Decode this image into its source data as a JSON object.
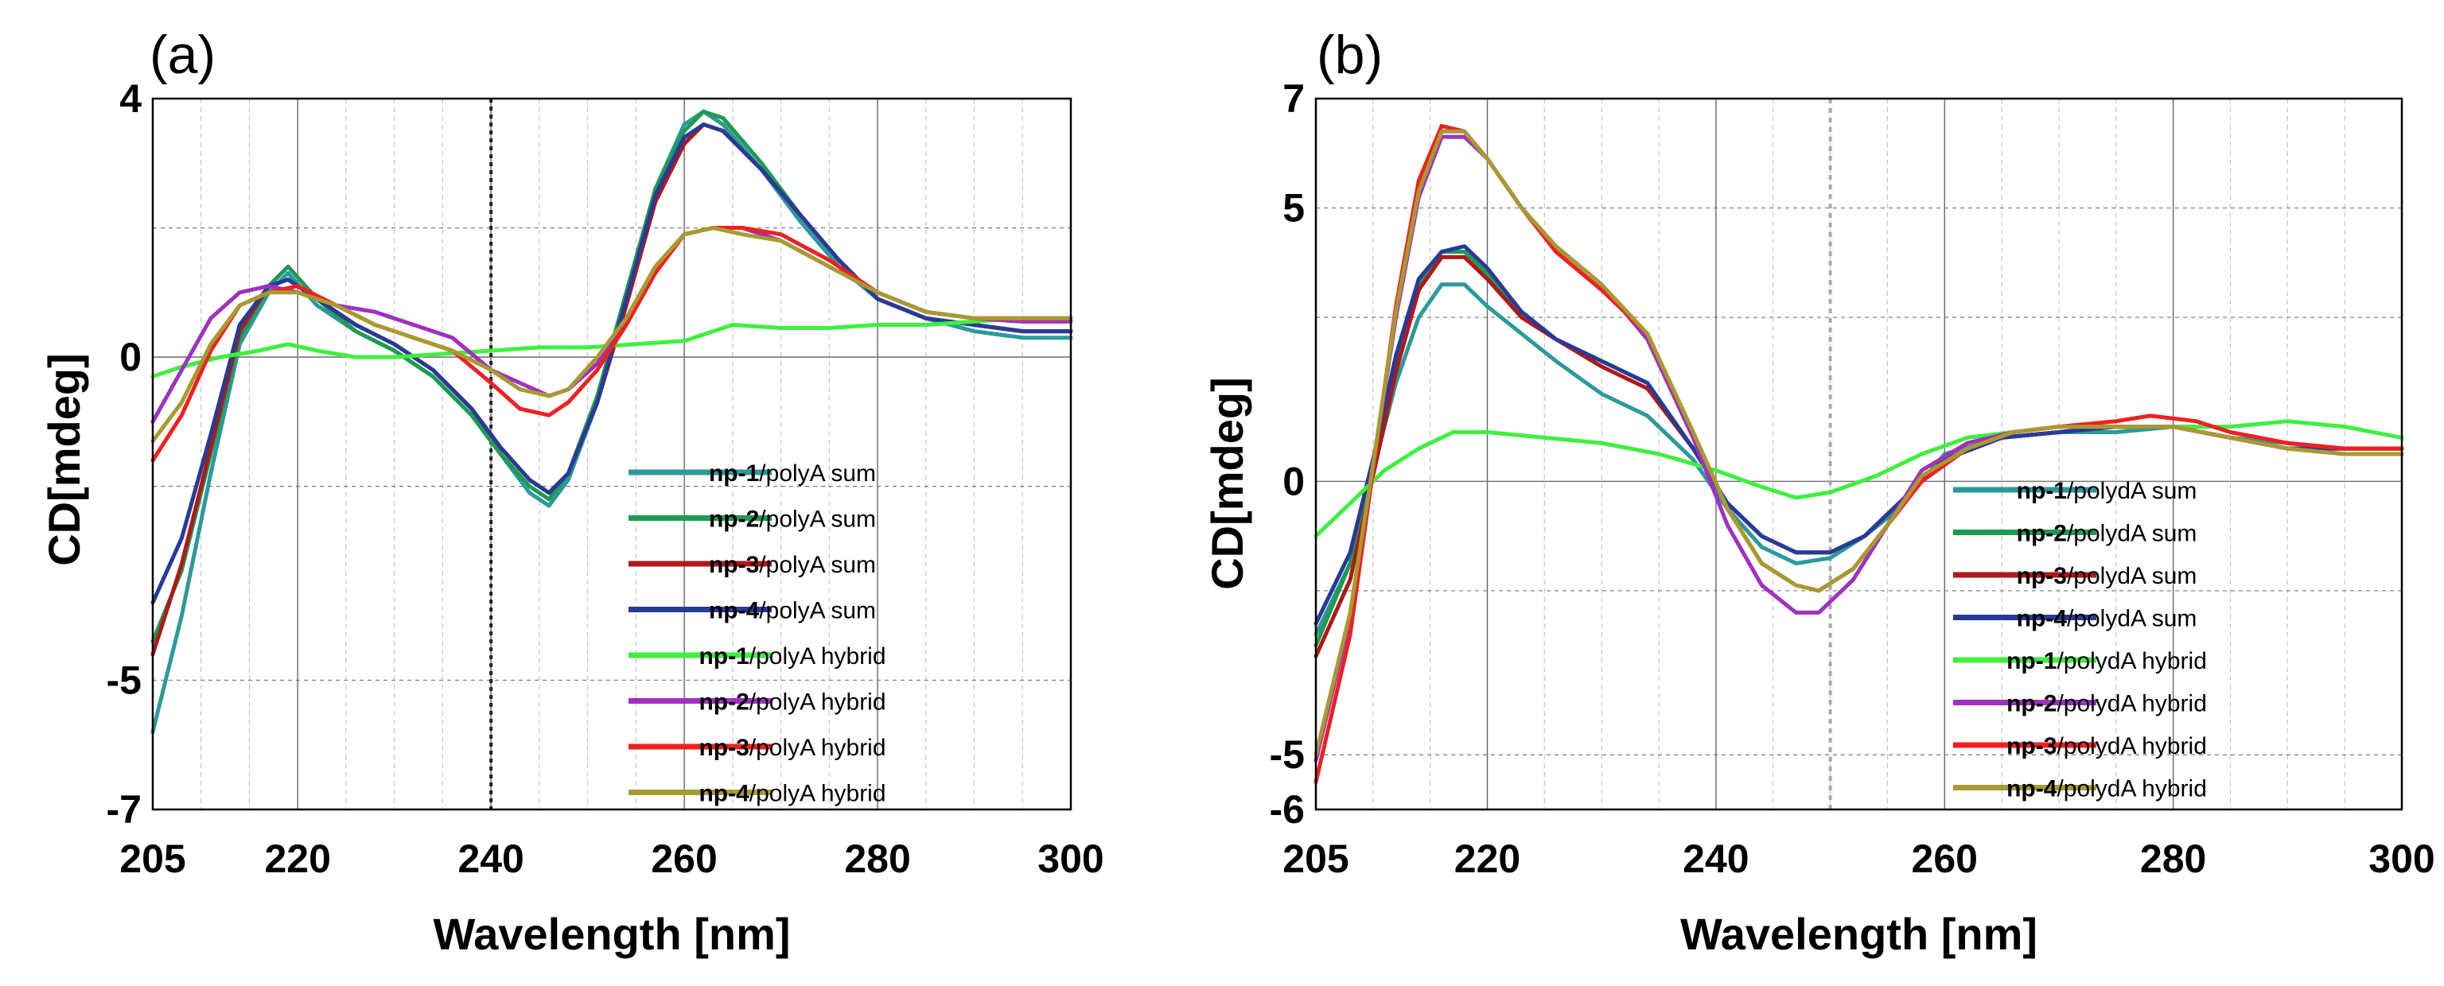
{
  "chart_data": [
    {
      "type": "line",
      "panel_label": "(a)",
      "xlabel": "Wavelength [nm]",
      "ylabel": "CD[mdeg]",
      "xlim": [
        205,
        300
      ],
      "ylim": [
        -7,
        4
      ],
      "x_ticks": [
        205,
        220,
        240,
        260,
        280,
        300
      ],
      "y_tick_labels": [
        4,
        0,
        -5,
        -7
      ],
      "y_grid": [
        2,
        -2,
        -5
      ],
      "marker_x": 240,
      "legend_position": "bottom-right",
      "series": [
        {
          "name": "np-1/polyA sum",
          "prefix": "np-1",
          "suffix": "/polyA sum",
          "color": "#2a9a9a",
          "x": [
            205,
            208,
            211,
            214,
            217,
            219,
            222,
            226,
            230,
            234,
            238,
            241,
            244,
            246,
            248,
            251,
            254,
            257,
            260,
            262,
            264,
            268,
            272,
            276,
            280,
            285,
            290,
            295,
            300
          ],
          "y": [
            -5.8,
            -4.0,
            -1.8,
            0.2,
            1.0,
            1.3,
            0.8,
            0.4,
            0.1,
            -0.3,
            -0.9,
            -1.5,
            -2.1,
            -2.3,
            -1.9,
            -0.7,
            0.9,
            2.6,
            3.6,
            3.8,
            3.6,
            2.9,
            2.1,
            1.4,
            0.9,
            0.6,
            0.4,
            0.3,
            0.3
          ]
        },
        {
          "name": "np-2/polyA sum",
          "prefix": "np-2",
          "suffix": "/polyA sum",
          "color": "#1f9a52",
          "x": [
            205,
            208,
            211,
            214,
            217,
            219,
            222,
            226,
            230,
            234,
            238,
            241,
            244,
            246,
            248,
            251,
            254,
            257,
            260,
            262,
            264,
            268,
            272,
            276,
            280,
            285,
            290,
            295,
            300
          ],
          "y": [
            -4.4,
            -3.3,
            -1.5,
            0.3,
            1.1,
            1.4,
            0.9,
            0.4,
            0.1,
            -0.3,
            -0.9,
            -1.5,
            -2.0,
            -2.2,
            -1.8,
            -0.6,
            1.0,
            2.6,
            3.5,
            3.8,
            3.7,
            3.0,
            2.2,
            1.5,
            0.9,
            0.6,
            0.5,
            0.4,
            0.4
          ]
        },
        {
          "name": "np-3/polyA sum",
          "prefix": "np-3",
          "suffix": "/polyA sum",
          "color": "#b01818",
          "x": [
            205,
            208,
            211,
            214,
            217,
            219,
            222,
            226,
            230,
            234,
            238,
            241,
            244,
            246,
            248,
            251,
            254,
            257,
            260,
            262,
            264,
            268,
            272,
            276,
            280,
            285,
            290,
            295,
            300
          ],
          "y": [
            -4.6,
            -3.2,
            -1.4,
            0.4,
            1.1,
            1.2,
            0.9,
            0.5,
            0.2,
            -0.2,
            -0.8,
            -1.4,
            -1.9,
            -2.1,
            -1.8,
            -0.7,
            0.8,
            2.4,
            3.3,
            3.6,
            3.5,
            2.9,
            2.2,
            1.5,
            0.9,
            0.6,
            0.5,
            0.4,
            0.4
          ]
        },
        {
          "name": "np-4/polyA sum",
          "prefix": "np-4",
          "suffix": "/polyA sum",
          "color": "#283a98",
          "x": [
            205,
            208,
            211,
            214,
            217,
            219,
            222,
            226,
            230,
            234,
            238,
            241,
            244,
            246,
            248,
            251,
            254,
            257,
            260,
            262,
            264,
            268,
            272,
            276,
            280,
            285,
            290,
            295,
            300
          ],
          "y": [
            -3.8,
            -2.8,
            -1.2,
            0.5,
            1.1,
            1.2,
            0.9,
            0.5,
            0.2,
            -0.2,
            -0.8,
            -1.4,
            -1.9,
            -2.1,
            -1.8,
            -0.7,
            0.9,
            2.5,
            3.4,
            3.6,
            3.5,
            2.9,
            2.2,
            1.5,
            0.9,
            0.6,
            0.5,
            0.4,
            0.4
          ]
        },
        {
          "name": "np-1/polyA hybrid",
          "prefix": "np-1",
          "suffix": "/polyA hybrid",
          "color": "#3ef03e",
          "x": [
            205,
            208,
            212,
            216,
            219,
            222,
            226,
            230,
            235,
            240,
            245,
            250,
            255,
            260,
            265,
            270,
            275,
            280,
            285,
            290,
            295,
            300
          ],
          "y": [
            -0.3,
            -0.15,
            0.0,
            0.1,
            0.2,
            0.1,
            0.0,
            0.0,
            0.05,
            0.1,
            0.15,
            0.15,
            0.2,
            0.25,
            0.5,
            0.45,
            0.45,
            0.5,
            0.5,
            0.55,
            0.6,
            0.6
          ]
        },
        {
          "name": "np-2/polyA hybrid",
          "prefix": "np-2",
          "suffix": "/polyA hybrid",
          "color": "#a030c0",
          "x": [
            205,
            208,
            211,
            214,
            217,
            220,
            224,
            228,
            232,
            236,
            240,
            243,
            246,
            248,
            251,
            254,
            257,
            260,
            263,
            266,
            270,
            275,
            280,
            285,
            290,
            295,
            300
          ],
          "y": [
            -1.0,
            -0.2,
            0.6,
            1.0,
            1.1,
            1.0,
            0.8,
            0.7,
            0.5,
            0.3,
            -0.2,
            -0.4,
            -0.6,
            -0.5,
            -0.1,
            0.6,
            1.4,
            1.9,
            2.0,
            2.0,
            1.8,
            1.4,
            1.0,
            0.7,
            0.6,
            0.55,
            0.55
          ]
        },
        {
          "name": "np-3/polyA hybrid",
          "prefix": "np-3",
          "suffix": "/polyA hybrid",
          "color": "#f02020",
          "x": [
            205,
            208,
            211,
            214,
            217,
            220,
            224,
            228,
            232,
            236,
            240,
            243,
            246,
            248,
            251,
            254,
            257,
            260,
            263,
            266,
            270,
            275,
            280,
            285,
            290,
            295,
            300
          ],
          "y": [
            -1.6,
            -0.9,
            0.1,
            0.8,
            1.0,
            1.1,
            0.8,
            0.5,
            0.3,
            0.1,
            -0.4,
            -0.8,
            -0.9,
            -0.7,
            -0.2,
            0.5,
            1.3,
            1.9,
            2.0,
            2.0,
            1.9,
            1.5,
            1.0,
            0.7,
            0.6,
            0.6,
            0.6
          ]
        },
        {
          "name": "np-4/polyA hybrid",
          "prefix": "np-4",
          "suffix": "/polyA hybrid",
          "color": "#a89a30",
          "x": [
            205,
            208,
            211,
            214,
            217,
            220,
            224,
            228,
            232,
            236,
            240,
            243,
            246,
            248,
            251,
            254,
            257,
            260,
            263,
            266,
            270,
            275,
            280,
            285,
            290,
            295,
            300
          ],
          "y": [
            -1.3,
            -0.7,
            0.2,
            0.8,
            1.0,
            1.0,
            0.8,
            0.5,
            0.3,
            0.1,
            -0.2,
            -0.5,
            -0.6,
            -0.5,
            0.0,
            0.6,
            1.4,
            1.9,
            2.0,
            1.9,
            1.8,
            1.4,
            1.0,
            0.7,
            0.6,
            0.6,
            0.6
          ]
        }
      ]
    },
    {
      "type": "line",
      "panel_label": "(b)",
      "xlabel": "Wavelength [nm]",
      "ylabel": "CD[mdeg]",
      "xlim": [
        205,
        300
      ],
      "ylim": [
        -6,
        7
      ],
      "x_ticks": [
        205,
        220,
        240,
        260,
        280,
        300
      ],
      "y_tick_labels": [
        7,
        5,
        0,
        -5,
        -6
      ],
      "y_grid": [
        5,
        3,
        -2,
        -5
      ],
      "marker_x": 250,
      "legend_position": "bottom-right",
      "series": [
        {
          "name": "np-1/polydA sum",
          "prefix": "np-1",
          "suffix": "/polydA sum",
          "color": "#2a9a9a",
          "x": [
            205,
            208,
            210,
            212,
            214,
            216,
            218,
            220,
            223,
            226,
            230,
            234,
            238,
            241,
            244,
            247,
            250,
            253,
            256,
            260,
            265,
            270,
            275,
            280,
            285,
            290,
            295,
            300
          ],
          "y": [
            -2.8,
            -1.5,
            0.2,
            1.8,
            3.0,
            3.6,
            3.6,
            3.2,
            2.7,
            2.2,
            1.6,
            1.2,
            0.4,
            -0.5,
            -1.2,
            -1.5,
            -1.4,
            -1.0,
            -0.5,
            0.5,
            0.8,
            0.9,
            0.9,
            1.0,
            0.8,
            0.7,
            0.6,
            0.6
          ]
        },
        {
          "name": "np-2/polydA sum",
          "prefix": "np-2",
          "suffix": "/polydA sum",
          "color": "#1f9a52",
          "x": [
            205,
            208,
            210,
            212,
            214,
            216,
            218,
            220,
            223,
            226,
            230,
            234,
            238,
            241,
            244,
            247,
            250,
            253,
            256,
            260,
            265,
            270,
            275,
            280,
            285,
            290,
            295,
            300
          ],
          "y": [
            -3.0,
            -1.5,
            0.3,
            2.2,
            3.6,
            4.2,
            4.2,
            3.8,
            3.1,
            2.6,
            2.2,
            1.8,
            0.6,
            -0.4,
            -1.0,
            -1.3,
            -1.3,
            -1.0,
            -0.4,
            0.4,
            0.8,
            0.9,
            1.0,
            1.0,
            0.8,
            0.6,
            0.6,
            0.6
          ]
        },
        {
          "name": "np-3/polydA sum",
          "prefix": "np-3",
          "suffix": "/polydA sum",
          "color": "#b01818",
          "x": [
            205,
            208,
            210,
            212,
            214,
            216,
            218,
            220,
            223,
            226,
            230,
            234,
            238,
            241,
            244,
            247,
            250,
            253,
            256,
            260,
            265,
            270,
            275,
            280,
            285,
            290,
            295,
            300
          ],
          "y": [
            -3.2,
            -1.8,
            0.1,
            2.0,
            3.5,
            4.1,
            4.1,
            3.7,
            3.0,
            2.6,
            2.1,
            1.7,
            0.6,
            -0.4,
            -1.0,
            -1.3,
            -1.3,
            -1.0,
            -0.4,
            0.4,
            0.8,
            0.9,
            1.0,
            1.0,
            0.8,
            0.6,
            0.6,
            0.6
          ]
        },
        {
          "name": "np-4/polydA sum",
          "prefix": "np-4",
          "suffix": "/polydA sum",
          "color": "#283a98",
          "x": [
            205,
            208,
            210,
            212,
            214,
            216,
            218,
            220,
            223,
            226,
            230,
            234,
            238,
            241,
            244,
            247,
            250,
            253,
            256,
            260,
            265,
            270,
            275,
            280,
            285,
            290,
            295,
            300
          ],
          "y": [
            -2.6,
            -1.3,
            0.4,
            2.3,
            3.7,
            4.2,
            4.3,
            3.9,
            3.1,
            2.6,
            2.2,
            1.8,
            0.6,
            -0.4,
            -1.0,
            -1.3,
            -1.3,
            -1.0,
            -0.4,
            0.4,
            0.8,
            0.9,
            1.0,
            1.0,
            0.8,
            0.6,
            0.6,
            0.6
          ]
        },
        {
          "name": "np-1/polydA hybrid",
          "prefix": "np-1",
          "suffix": "/polydA hybrid",
          "color": "#3ef03e",
          "x": [
            205,
            208,
            211,
            214,
            217,
            220,
            225,
            230,
            235,
            240,
            244,
            247,
            250,
            254,
            258,
            262,
            266,
            270,
            275,
            280,
            285,
            290,
            295,
            300
          ],
          "y": [
            -1.0,
            -0.4,
            0.2,
            0.6,
            0.9,
            0.9,
            0.8,
            0.7,
            0.5,
            0.2,
            -0.1,
            -0.3,
            -0.2,
            0.1,
            0.5,
            0.8,
            0.9,
            1.0,
            1.0,
            1.0,
            1.0,
            1.1,
            1.0,
            0.8
          ]
        },
        {
          "name": "np-2/polydA hybrid",
          "prefix": "np-2",
          "suffix": "/polydA hybrid",
          "color": "#a030c0",
          "x": [
            205,
            208,
            210,
            212,
            214,
            216,
            218,
            220,
            223,
            226,
            230,
            234,
            238,
            241,
            244,
            247,
            249,
            252,
            255,
            258,
            262,
            266,
            270,
            275,
            280,
            285,
            290,
            295,
            300
          ],
          "y": [
            -5.1,
            -2.5,
            0.3,
            3.0,
            5.2,
            6.3,
            6.3,
            5.9,
            5.0,
            4.3,
            3.6,
            2.6,
            0.8,
            -0.8,
            -1.9,
            -2.4,
            -2.4,
            -1.8,
            -0.8,
            0.2,
            0.7,
            0.9,
            1.0,
            1.0,
            1.0,
            0.8,
            0.6,
            0.5,
            0.5
          ]
        },
        {
          "name": "np-3/polydA hybrid",
          "prefix": "np-3",
          "suffix": "/polydA hybrid",
          "color": "#f02020",
          "x": [
            205,
            208,
            210,
            212,
            214,
            216,
            218,
            220,
            223,
            226,
            230,
            234,
            238,
            241,
            244,
            247,
            249,
            252,
            255,
            258,
            262,
            266,
            270,
            275,
            278,
            282,
            285,
            290,
            295,
            300
          ],
          "y": [
            -5.5,
            -2.8,
            0.2,
            3.2,
            5.5,
            6.5,
            6.4,
            5.9,
            5.0,
            4.2,
            3.5,
            2.7,
            0.9,
            -0.5,
            -1.5,
            -1.9,
            -2.0,
            -1.6,
            -0.8,
            0.0,
            0.6,
            0.9,
            1.0,
            1.1,
            1.2,
            1.1,
            0.9,
            0.7,
            0.6,
            0.6
          ]
        },
        {
          "name": "np-4/polydA hybrid",
          "prefix": "np-4",
          "suffix": "/polydA hybrid",
          "color": "#a89a30",
          "x": [
            205,
            208,
            210,
            212,
            214,
            216,
            218,
            220,
            223,
            226,
            230,
            234,
            238,
            241,
            244,
            247,
            249,
            252,
            255,
            258,
            262,
            266,
            270,
            275,
            280,
            285,
            290,
            295,
            300
          ],
          "y": [
            -5.0,
            -2.4,
            0.3,
            3.1,
            5.3,
            6.4,
            6.4,
            5.9,
            5.0,
            4.3,
            3.6,
            2.7,
            0.9,
            -0.5,
            -1.5,
            -1.9,
            -2.0,
            -1.6,
            -0.8,
            0.1,
            0.6,
            0.9,
            1.0,
            1.0,
            1.0,
            0.8,
            0.6,
            0.5,
            0.5
          ]
        }
      ]
    }
  ]
}
